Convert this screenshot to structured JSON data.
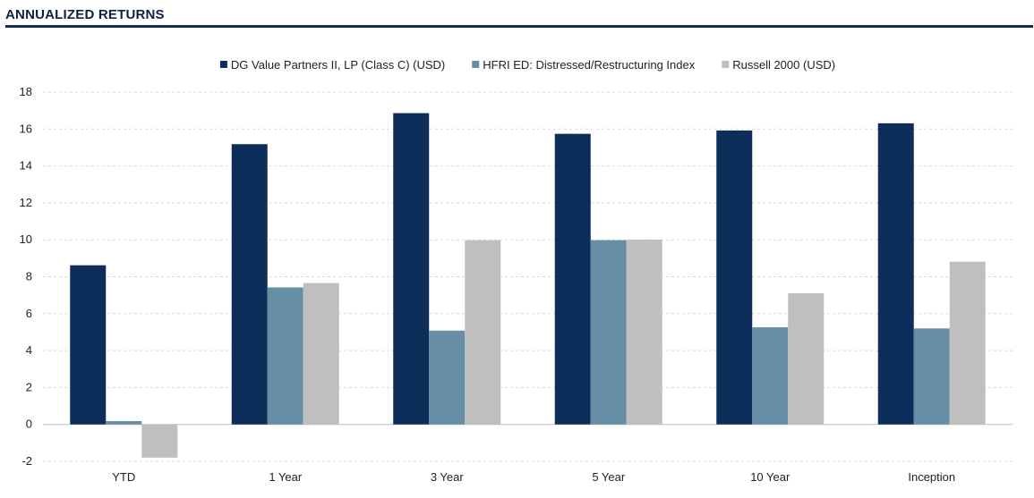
{
  "header": {
    "title": "ANNUALIZED RETURNS"
  },
  "colors": {
    "accent_rule": "#0d2d5a",
    "grid": "#d9d9d9",
    "axis": "#bfbfbf"
  },
  "chart_data": {
    "type": "bar",
    "title": "",
    "xlabel": "",
    "ylabel": "",
    "categories": [
      "YTD",
      "1 Year",
      "3 Year",
      "5 Year",
      "10 Year",
      "Inception"
    ],
    "series": [
      {
        "name": "DG Value Partners II, LP (Class C) (USD)",
        "color": "#0d2d5a",
        "values": [
          8.62,
          15.18,
          16.86,
          15.74,
          15.92,
          16.31
        ]
      },
      {
        "name": "HFRI ED: Distressed/Restructuring Index",
        "color": "#668fa6",
        "values": [
          0.18,
          7.42,
          5.08,
          9.98,
          5.26,
          5.2
        ]
      },
      {
        "name": "Russell 2000 (USD)",
        "color": "#bfbfbf",
        "values": [
          -1.8,
          7.66,
          9.98,
          10.01,
          7.1,
          8.81
        ]
      }
    ],
    "ylim": [
      -2,
      18
    ],
    "yticks": [
      -2,
      0,
      2,
      4,
      6,
      8,
      10,
      12,
      14,
      16,
      18
    ],
    "grid": true,
    "legend_position": "top"
  }
}
